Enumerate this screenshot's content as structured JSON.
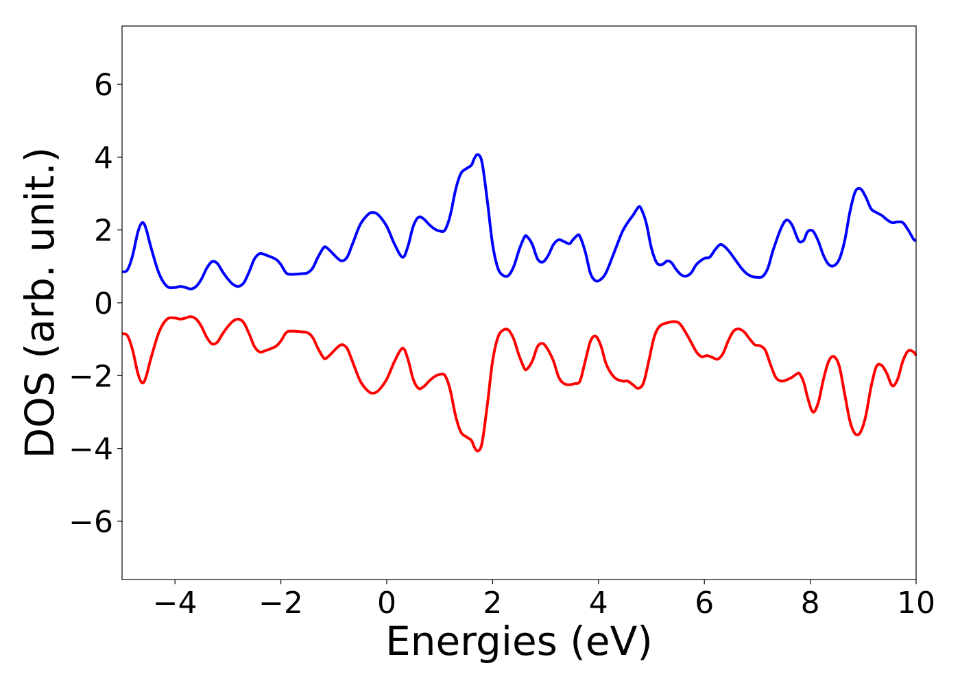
{
  "chart_data": {
    "type": "line",
    "xlabel": "Energies (eV)",
    "ylabel": "DOS (arb. unit.)",
    "xlim": [
      -5,
      10
    ],
    "ylim": [
      -7.6,
      7.6
    ],
    "xticks": [
      -4,
      -2,
      0,
      2,
      4,
      6,
      8,
      10
    ],
    "xtick_labels": [
      "−4",
      "−2",
      "0",
      "2",
      "4",
      "6",
      "8",
      "10"
    ],
    "yticks": [
      -6,
      -4,
      -2,
      0,
      2,
      4,
      6
    ],
    "ytick_labels": [
      "−6",
      "−4",
      "−2",
      "0",
      "2",
      "4",
      "6"
    ],
    "grid": false,
    "legend": false,
    "series": [
      {
        "color": "#0000ff",
        "points": [
          [
            -5.0,
            0.85
          ],
          [
            -4.9,
            0.9
          ],
          [
            -4.8,
            1.3
          ],
          [
            -4.7,
            1.95
          ],
          [
            -4.62,
            2.2
          ],
          [
            -4.55,
            2.05
          ],
          [
            -4.45,
            1.5
          ],
          [
            -4.3,
            0.8
          ],
          [
            -4.15,
            0.45
          ],
          [
            -4.0,
            0.42
          ],
          [
            -3.9,
            0.45
          ],
          [
            -3.8,
            0.42
          ],
          [
            -3.7,
            0.38
          ],
          [
            -3.6,
            0.45
          ],
          [
            -3.5,
            0.65
          ],
          [
            -3.4,
            0.95
          ],
          [
            -3.3,
            1.13
          ],
          [
            -3.2,
            1.08
          ],
          [
            -3.1,
            0.85
          ],
          [
            -3.0,
            0.65
          ],
          [
            -2.9,
            0.5
          ],
          [
            -2.8,
            0.45
          ],
          [
            -2.7,
            0.55
          ],
          [
            -2.6,
            0.85
          ],
          [
            -2.5,
            1.2
          ],
          [
            -2.4,
            1.35
          ],
          [
            -2.3,
            1.32
          ],
          [
            -2.1,
            1.2
          ],
          [
            -2.0,
            1.05
          ],
          [
            -1.9,
            0.82
          ],
          [
            -1.8,
            0.78
          ],
          [
            -1.6,
            0.8
          ],
          [
            -1.5,
            0.82
          ],
          [
            -1.4,
            0.95
          ],
          [
            -1.3,
            1.25
          ],
          [
            -1.2,
            1.5
          ],
          [
            -1.15,
            1.53
          ],
          [
            -1.05,
            1.4
          ],
          [
            -0.95,
            1.25
          ],
          [
            -0.85,
            1.15
          ],
          [
            -0.75,
            1.25
          ],
          [
            -0.65,
            1.6
          ],
          [
            -0.5,
            2.15
          ],
          [
            -0.35,
            2.43
          ],
          [
            -0.25,
            2.48
          ],
          [
            -0.15,
            2.4
          ],
          [
            0.0,
            2.1
          ],
          [
            0.15,
            1.6
          ],
          [
            0.3,
            1.25
          ],
          [
            0.4,
            1.55
          ],
          [
            0.5,
            2.1
          ],
          [
            0.6,
            2.35
          ],
          [
            0.7,
            2.3
          ],
          [
            0.8,
            2.15
          ],
          [
            0.9,
            2.03
          ],
          [
            1.0,
            1.97
          ],
          [
            1.1,
            2.0
          ],
          [
            1.2,
            2.4
          ],
          [
            1.3,
            3.1
          ],
          [
            1.4,
            3.55
          ],
          [
            1.5,
            3.68
          ],
          [
            1.6,
            3.78
          ],
          [
            1.65,
            3.95
          ],
          [
            1.72,
            4.07
          ],
          [
            1.8,
            3.85
          ],
          [
            1.9,
            2.8
          ],
          [
            2.0,
            1.6
          ],
          [
            2.1,
            0.95
          ],
          [
            2.2,
            0.75
          ],
          [
            2.3,
            0.75
          ],
          [
            2.4,
            1.0
          ],
          [
            2.5,
            1.45
          ],
          [
            2.6,
            1.8
          ],
          [
            2.65,
            1.82
          ],
          [
            2.75,
            1.6
          ],
          [
            2.85,
            1.2
          ],
          [
            2.95,
            1.12
          ],
          [
            3.05,
            1.3
          ],
          [
            3.15,
            1.6
          ],
          [
            3.25,
            1.73
          ],
          [
            3.35,
            1.68
          ],
          [
            3.45,
            1.62
          ],
          [
            3.5,
            1.7
          ],
          [
            3.6,
            1.85
          ],
          [
            3.65,
            1.82
          ],
          [
            3.75,
            1.4
          ],
          [
            3.85,
            0.8
          ],
          [
            3.95,
            0.6
          ],
          [
            4.05,
            0.65
          ],
          [
            4.15,
            0.85
          ],
          [
            4.3,
            1.4
          ],
          [
            4.45,
            1.95
          ],
          [
            4.55,
            2.2
          ],
          [
            4.65,
            2.4
          ],
          [
            4.75,
            2.62
          ],
          [
            4.8,
            2.6
          ],
          [
            4.9,
            2.2
          ],
          [
            5.0,
            1.5
          ],
          [
            5.1,
            1.1
          ],
          [
            5.2,
            1.05
          ],
          [
            5.3,
            1.15
          ],
          [
            5.38,
            1.1
          ],
          [
            5.45,
            0.95
          ],
          [
            5.55,
            0.78
          ],
          [
            5.65,
            0.73
          ],
          [
            5.75,
            0.82
          ],
          [
            5.85,
            1.05
          ],
          [
            6.0,
            1.22
          ],
          [
            6.1,
            1.25
          ],
          [
            6.2,
            1.45
          ],
          [
            6.3,
            1.6
          ],
          [
            6.4,
            1.52
          ],
          [
            6.5,
            1.35
          ],
          [
            6.6,
            1.15
          ],
          [
            6.7,
            0.95
          ],
          [
            6.8,
            0.8
          ],
          [
            6.9,
            0.72
          ],
          [
            7.0,
            0.7
          ],
          [
            7.1,
            0.72
          ],
          [
            7.2,
            0.95
          ],
          [
            7.3,
            1.45
          ],
          [
            7.45,
            2.05
          ],
          [
            7.55,
            2.27
          ],
          [
            7.65,
            2.15
          ],
          [
            7.75,
            1.8
          ],
          [
            7.8,
            1.67
          ],
          [
            7.88,
            1.72
          ],
          [
            7.95,
            1.95
          ],
          [
            8.05,
            1.97
          ],
          [
            8.15,
            1.7
          ],
          [
            8.25,
            1.3
          ],
          [
            8.35,
            1.05
          ],
          [
            8.45,
            1.02
          ],
          [
            8.55,
            1.2
          ],
          [
            8.65,
            1.7
          ],
          [
            8.75,
            2.5
          ],
          [
            8.85,
            3.05
          ],
          [
            8.95,
            3.13
          ],
          [
            9.05,
            2.9
          ],
          [
            9.15,
            2.58
          ],
          [
            9.25,
            2.48
          ],
          [
            9.35,
            2.4
          ],
          [
            9.45,
            2.28
          ],
          [
            9.55,
            2.2
          ],
          [
            9.65,
            2.22
          ],
          [
            9.75,
            2.2
          ],
          [
            9.85,
            2.0
          ],
          [
            9.95,
            1.75
          ],
          [
            10.0,
            1.7
          ]
        ]
      },
      {
        "color": "#ff0000",
        "points": [
          [
            -5.0,
            -0.85
          ],
          [
            -4.9,
            -0.9
          ],
          [
            -4.8,
            -1.3
          ],
          [
            -4.7,
            -1.95
          ],
          [
            -4.62,
            -2.2
          ],
          [
            -4.55,
            -2.05
          ],
          [
            -4.45,
            -1.5
          ],
          [
            -4.3,
            -0.8
          ],
          [
            -4.15,
            -0.45
          ],
          [
            -4.0,
            -0.42
          ],
          [
            -3.9,
            -0.45
          ],
          [
            -3.8,
            -0.42
          ],
          [
            -3.7,
            -0.38
          ],
          [
            -3.6,
            -0.45
          ],
          [
            -3.5,
            -0.65
          ],
          [
            -3.4,
            -0.95
          ],
          [
            -3.3,
            -1.13
          ],
          [
            -3.2,
            -1.08
          ],
          [
            -3.1,
            -0.85
          ],
          [
            -3.0,
            -0.65
          ],
          [
            -2.9,
            -0.5
          ],
          [
            -2.8,
            -0.45
          ],
          [
            -2.7,
            -0.55
          ],
          [
            -2.6,
            -0.85
          ],
          [
            -2.5,
            -1.2
          ],
          [
            -2.4,
            -1.35
          ],
          [
            -2.3,
            -1.32
          ],
          [
            -2.1,
            -1.2
          ],
          [
            -2.0,
            -1.05
          ],
          [
            -1.9,
            -0.82
          ],
          [
            -1.8,
            -0.78
          ],
          [
            -1.6,
            -0.8
          ],
          [
            -1.5,
            -0.82
          ],
          [
            -1.4,
            -0.95
          ],
          [
            -1.3,
            -1.25
          ],
          [
            -1.2,
            -1.5
          ],
          [
            -1.15,
            -1.53
          ],
          [
            -1.05,
            -1.4
          ],
          [
            -0.95,
            -1.25
          ],
          [
            -0.85,
            -1.15
          ],
          [
            -0.75,
            -1.25
          ],
          [
            -0.65,
            -1.6
          ],
          [
            -0.5,
            -2.15
          ],
          [
            -0.35,
            -2.43
          ],
          [
            -0.25,
            -2.48
          ],
          [
            -0.15,
            -2.4
          ],
          [
            0.0,
            -2.1
          ],
          [
            0.15,
            -1.6
          ],
          [
            0.3,
            -1.25
          ],
          [
            0.4,
            -1.55
          ],
          [
            0.5,
            -2.1
          ],
          [
            0.6,
            -2.35
          ],
          [
            0.7,
            -2.3
          ],
          [
            0.8,
            -2.15
          ],
          [
            0.9,
            -2.03
          ],
          [
            1.0,
            -1.97
          ],
          [
            1.1,
            -2.0
          ],
          [
            1.2,
            -2.4
          ],
          [
            1.3,
            -3.1
          ],
          [
            1.4,
            -3.55
          ],
          [
            1.5,
            -3.68
          ],
          [
            1.6,
            -3.78
          ],
          [
            1.65,
            -3.95
          ],
          [
            1.72,
            -4.07
          ],
          [
            1.8,
            -3.85
          ],
          [
            1.9,
            -2.8
          ],
          [
            2.0,
            -1.6
          ],
          [
            2.1,
            -0.95
          ],
          [
            2.2,
            -0.75
          ],
          [
            2.3,
            -0.75
          ],
          [
            2.4,
            -1.0
          ],
          [
            2.5,
            -1.45
          ],
          [
            2.6,
            -1.8
          ],
          [
            2.65,
            -1.82
          ],
          [
            2.75,
            -1.6
          ],
          [
            2.85,
            -1.2
          ],
          [
            2.95,
            -1.12
          ],
          [
            3.05,
            -1.3
          ],
          [
            3.15,
            -1.6
          ],
          [
            3.25,
            -2.05
          ],
          [
            3.35,
            -2.22
          ],
          [
            3.45,
            -2.25
          ],
          [
            3.55,
            -2.22
          ],
          [
            3.65,
            -2.15
          ],
          [
            3.75,
            -1.6
          ],
          [
            3.85,
            -1.05
          ],
          [
            3.95,
            -0.92
          ],
          [
            4.05,
            -1.2
          ],
          [
            4.15,
            -1.7
          ],
          [
            4.3,
            -2.05
          ],
          [
            4.45,
            -2.15
          ],
          [
            4.55,
            -2.15
          ],
          [
            4.65,
            -2.25
          ],
          [
            4.75,
            -2.35
          ],
          [
            4.85,
            -2.2
          ],
          [
            4.95,
            -1.6
          ],
          [
            5.05,
            -0.95
          ],
          [
            5.15,
            -0.65
          ],
          [
            5.3,
            -0.55
          ],
          [
            5.45,
            -0.52
          ],
          [
            5.55,
            -0.6
          ],
          [
            5.7,
            -0.95
          ],
          [
            5.85,
            -1.35
          ],
          [
            5.95,
            -1.48
          ],
          [
            6.05,
            -1.45
          ],
          [
            6.15,
            -1.5
          ],
          [
            6.25,
            -1.55
          ],
          [
            6.35,
            -1.4
          ],
          [
            6.45,
            -1.05
          ],
          [
            6.55,
            -0.78
          ],
          [
            6.65,
            -0.72
          ],
          [
            6.75,
            -0.8
          ],
          [
            6.85,
            -0.98
          ],
          [
            6.95,
            -1.15
          ],
          [
            7.05,
            -1.18
          ],
          [
            7.15,
            -1.3
          ],
          [
            7.25,
            -1.7
          ],
          [
            7.35,
            -2.05
          ],
          [
            7.45,
            -2.15
          ],
          [
            7.55,
            -2.12
          ],
          [
            7.65,
            -2.05
          ],
          [
            7.75,
            -1.95
          ],
          [
            7.8,
            -1.95
          ],
          [
            7.88,
            -2.2
          ],
          [
            7.95,
            -2.6
          ],
          [
            8.05,
            -3.0
          ],
          [
            8.15,
            -2.75
          ],
          [
            8.25,
            -2.1
          ],
          [
            8.35,
            -1.6
          ],
          [
            8.45,
            -1.48
          ],
          [
            8.55,
            -1.75
          ],
          [
            8.65,
            -2.5
          ],
          [
            8.75,
            -3.25
          ],
          [
            8.85,
            -3.6
          ],
          [
            8.95,
            -3.55
          ],
          [
            9.05,
            -3.1
          ],
          [
            9.15,
            -2.3
          ],
          [
            9.25,
            -1.75
          ],
          [
            9.35,
            -1.72
          ],
          [
            9.45,
            -1.95
          ],
          [
            9.55,
            -2.28
          ],
          [
            9.65,
            -2.1
          ],
          [
            9.75,
            -1.6
          ],
          [
            9.85,
            -1.32
          ],
          [
            9.95,
            -1.35
          ],
          [
            10.0,
            -1.45
          ]
        ]
      }
    ]
  }
}
